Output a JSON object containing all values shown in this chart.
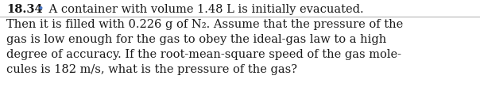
{
  "problem_number": "18.34",
  "bullet": "•",
  "bullet_color": "#4472c4",
  "line1_text": " A container with volume 1.48 L is initially evacuated.",
  "line2": "Then it is filled with 0.226 g of N₂. Assume that the pressure of the",
  "line3": "gas is low enough for the gas to obey the ideal-gas law to a high",
  "line4": "degree of accuracy. If the root-mean-square speed of the gas mole-",
  "line5": "cules is 182 m/s, what is the pressure of the gas?",
  "background_color": "#ffffff",
  "text_color": "#1a1a1a",
  "separator_color": "#aaaaaa",
  "font_size_header": 10.5,
  "font_size_body": 10.5,
  "fig_width": 6.04,
  "fig_height": 1.34,
  "dpi": 100
}
